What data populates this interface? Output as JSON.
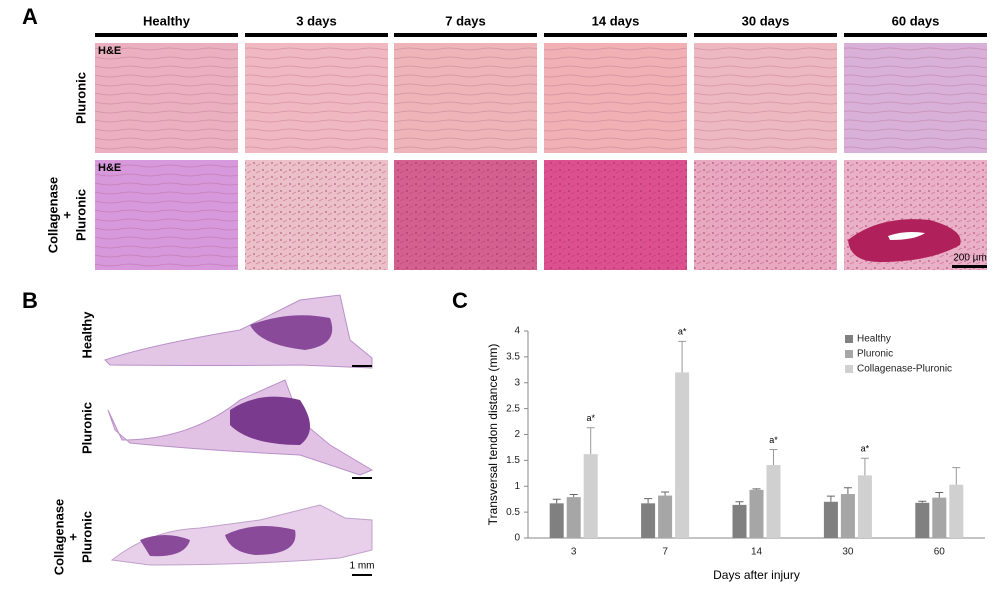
{
  "panel_a": {
    "letter": "A",
    "columns": [
      "Healthy",
      "3 days",
      "7 days",
      "14 days",
      "30 days",
      "60 days"
    ],
    "rows": [
      {
        "label": [
          "Pluronic"
        ],
        "stain": "H&E"
      },
      {
        "label": [
          "Collagenase",
          "+",
          "Pluronic"
        ],
        "stain": "H&E"
      }
    ],
    "scale_bar": "200 µm"
  },
  "panel_b": {
    "letter": "B",
    "rows": [
      [
        "Healthy"
      ],
      [
        "Pluronic"
      ],
      [
        "Collagenase",
        "+",
        "Pluronic"
      ]
    ],
    "scale_bar": "1 mm"
  },
  "panel_c": {
    "letter": "C"
  },
  "chart_data": {
    "type": "bar",
    "categories": [
      "3",
      "7",
      "14",
      "30",
      "60"
    ],
    "series": [
      {
        "name": "Healthy",
        "color": "#808080",
        "values": [
          0.67,
          0.67,
          0.64,
          0.7,
          0.68
        ],
        "errors": [
          0.08,
          0.09,
          0.06,
          0.11,
          0.03
        ]
      },
      {
        "name": "Pluronic",
        "color": "#a6a6a6",
        "values": [
          0.79,
          0.82,
          0.93,
          0.85,
          0.78
        ],
        "errors": [
          0.05,
          0.07,
          0.02,
          0.12,
          0.1
        ]
      },
      {
        "name": "Collagenase-Pluronic",
        "color": "#d0d0d0",
        "values": [
          1.62,
          3.2,
          1.41,
          1.21,
          1.03
        ],
        "errors": [
          0.51,
          0.6,
          0.3,
          0.33,
          0.33
        ],
        "value_annotations": [
          "a*",
          "a*",
          "a*",
          "a*",
          null
        ]
      }
    ],
    "ylim": [
      0,
      4
    ],
    "yticks": [
      0,
      0.5,
      1,
      1.5,
      2,
      2.5,
      3,
      3.5,
      4
    ],
    "y_label": "Transversal tendon distance (mm)",
    "x_label": "Days after injury",
    "legend": "upper right"
  }
}
